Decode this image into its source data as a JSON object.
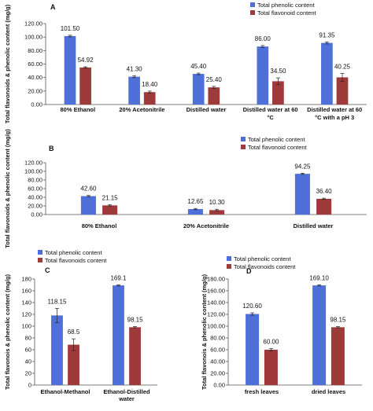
{
  "chart_data": [
    {
      "type": "bar",
      "panel_label": "A",
      "ylabel": "Total flavonoids & phenolic content  (mg/g)",
      "ylim": [
        0,
        120
      ],
      "yticks": [
        "0.00",
        "20.00",
        "40.00",
        "60.00",
        "80.00",
        "100.00",
        "120.00"
      ],
      "categories": [
        [
          "80% Ethanol"
        ],
        [
          "20% Acetonitrile"
        ],
        [
          "Distilled water"
        ],
        [
          "Distilled water at 60",
          "°C"
        ],
        [
          "Distilled water at 60",
          "°C with a pH 3"
        ]
      ],
      "series": [
        {
          "name": "Total phenolic content",
          "color": "#4f6fd9",
          "values": [
            101.5,
            41.3,
            45.4,
            86.0,
            91.35
          ],
          "labels": [
            "101.50",
            "41.30",
            "45.40",
            "86.00",
            "91.35"
          ],
          "errors": [
            1.2,
            1.5,
            1.2,
            1.5,
            1.5
          ]
        },
        {
          "name": "Total flavonoid content",
          "color": "#9e3a3a",
          "values": [
            54.92,
            18.4,
            25.4,
            34.5,
            40.25
          ],
          "labels": [
            "54.92",
            "18.40",
            "25.40",
            "34.50",
            "40.25"
          ],
          "errors": [
            1.0,
            1.5,
            1.5,
            5.0,
            6.0
          ]
        }
      ],
      "legend": "top-right",
      "grid": false
    },
    {
      "type": "bar",
      "panel_label": "B",
      "ylabel": "Total flavonoids & phenolic content  (mg/g)",
      "ylim": [
        0,
        120
      ],
      "yticks": [
        "0.00",
        "20.00",
        "40.00",
        "60.00",
        "80.00",
        "100.00",
        "120.00"
      ],
      "categories": [
        [
          "80% Ethanol"
        ],
        [
          "20% Acetonitrile"
        ],
        [
          "Distilled water"
        ]
      ],
      "series": [
        {
          "name": "Total phenolic content",
          "color": "#4f6fd9",
          "values": [
            42.6,
            12.65,
            94.25
          ],
          "labels": [
            "42.60",
            "12.65",
            "94.25"
          ],
          "errors": [
            1.5,
            1.5,
            1.5
          ]
        },
        {
          "name": "Total flavonoid content",
          "color": "#9e3a3a",
          "values": [
            21.15,
            10.3,
            36.4
          ],
          "labels": [
            "21.15",
            "10.30",
            "36.40"
          ],
          "errors": [
            1.5,
            2.0,
            1.5
          ]
        }
      ],
      "legend": "top-right",
      "grid": false
    },
    {
      "type": "bar",
      "panel_label": "C",
      "ylabel": "Total flavonois &  phenolic content (mg/g)",
      "ylim": [
        0,
        180
      ],
      "yticks": [
        "0",
        "20",
        "40",
        "60",
        "80",
        "100",
        "120",
        "140",
        "160",
        "180"
      ],
      "categories": [
        [
          "Ethanol-Methanol"
        ],
        [
          "Ethanol-Distilled",
          "water"
        ]
      ],
      "series": [
        {
          "name": "Total phenolic content",
          "color": "#4f6fd9",
          "values": [
            118.15,
            169.1
          ],
          "labels": [
            "118.15",
            "169.1"
          ],
          "errors": [
            12.0,
            1.0
          ]
        },
        {
          "name": "Total flavonoids content",
          "color": "#9e3a3a",
          "values": [
            68.5,
            98.15
          ],
          "labels": [
            "68.5",
            "98.15"
          ],
          "errors": [
            10.0,
            1.0
          ]
        }
      ],
      "legend": "top-left",
      "grid": false
    },
    {
      "type": "bar",
      "panel_label": "D",
      "ylabel": "Total flavonois & phenolic content  (mg/g)",
      "ylim": [
        0,
        180
      ],
      "yticks": [
        "0.00",
        "20.00",
        "40.00",
        "60.00",
        "80.00",
        "100.00",
        "120.00",
        "140.00",
        "160.00",
        "180.00"
      ],
      "categories": [
        [
          "fresh leaves"
        ],
        [
          "dried leaves"
        ]
      ],
      "series": [
        {
          "name": "Total phenolic content",
          "color": "#4f6fd9",
          "values": [
            120.6,
            169.1
          ],
          "labels": [
            "120.60",
            "169.10"
          ],
          "errors": [
            2.0,
            1.0
          ]
        },
        {
          "name": "Total flavonoids content",
          "color": "#9e3a3a",
          "values": [
            60.0,
            98.15
          ],
          "labels": [
            "60.00",
            "98.15"
          ],
          "errors": [
            2.0,
            1.0
          ]
        }
      ],
      "legend": "top-right",
      "grid": false
    }
  ]
}
